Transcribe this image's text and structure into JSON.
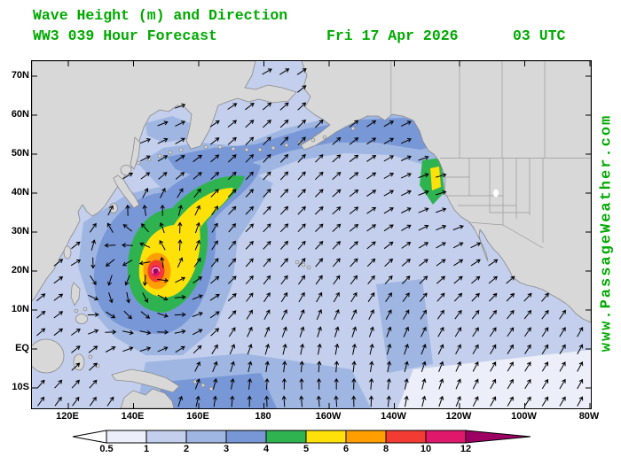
{
  "header": {
    "title": "Wave Height (m) and Direction",
    "forecast": "WW3 039 Hour Forecast",
    "date": "Fri 17 Apr 2026",
    "time": "03 UTC"
  },
  "watermark": "www.PassageWeather.com",
  "map": {
    "lat_labels": [
      "70N",
      "60N",
      "50N",
      "40N",
      "30N",
      "20N",
      "10N",
      "EQ",
      "10S"
    ],
    "lon_labels": [
      "120E",
      "140E",
      "160E",
      "180",
      "160W",
      "140W",
      "120W",
      "100W",
      "80W"
    ]
  },
  "colorbar": {
    "tick_labels": [
      "0.5",
      "1",
      "2",
      "3",
      "4",
      "5",
      "6",
      "8",
      "10",
      "12"
    ],
    "colors": [
      "#ffffff",
      "#eceef9",
      "#c3cfec",
      "#9fb6e2",
      "#7897d6",
      "#2fb351",
      "#ffe10a",
      "#ff9e00",
      "#f23b33",
      "#e0186c",
      "#9c0063"
    ]
  },
  "colors": {
    "text_green": "#00AA00",
    "land": "#d8d8d8",
    "coastline": "#8a8a8a",
    "state_borders": "#9a9a9a",
    "arrows": "#000000",
    "frame": "#000000"
  }
}
